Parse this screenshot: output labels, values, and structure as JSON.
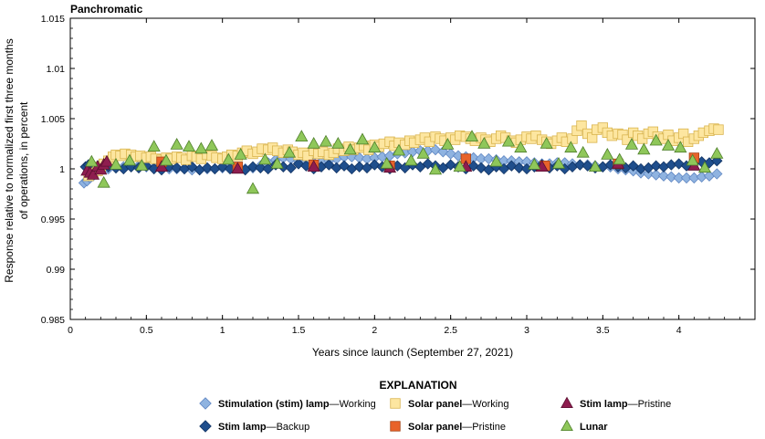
{
  "chart_data": {
    "type": "scatter",
    "title": "Panchromatic",
    "xlabel": "Years since launch (September 27, 2021)",
    "ylabel_lines": [
      "Response relative to normalized first three months",
      "of operations, in percent"
    ],
    "xlim": [
      0,
      4.5
    ],
    "ylim": [
      0.985,
      1.015
    ],
    "xticks": [
      0,
      0.5,
      1,
      1.5,
      2,
      2.5,
      3,
      3.5,
      4
    ],
    "xtick_labels": [
      "0",
      "0.5",
      "1",
      "1.5",
      "2",
      "2.5",
      "3",
      "3.5",
      "4"
    ],
    "yticks": [
      0.985,
      0.99,
      0.995,
      1,
      1.005,
      1.01,
      1.015
    ],
    "ytick_labels": [
      "0.985",
      "0.99",
      "0.995",
      "1",
      "1.005",
      "1.01",
      "1.015"
    ],
    "grid": false,
    "legend": {
      "title": "EXPLANATION",
      "placement": "bottom-center",
      "entries": [
        {
          "series": 0,
          "bold": "Stimulation (stim) lamp",
          "rest": "—Working"
        },
        {
          "series": 1,
          "bold": "Stim lamp",
          "rest": "—Backup"
        },
        {
          "series": 2,
          "bold": "Solar panel",
          "rest": "—Working"
        },
        {
          "series": 3,
          "bold": "Solar panel",
          "rest": "—Pristine"
        },
        {
          "series": 4,
          "bold": "Stim lamp",
          "rest": "—Pristine"
        },
        {
          "series": 5,
          "bold": "Lunar",
          "rest": ""
        }
      ]
    },
    "series": [
      {
        "name": "Stimulation (stim) lamp—Working",
        "marker": "diamond",
        "color": "#8fb3e0",
        "stroke": "#5f86c2",
        "x": [
          0.09,
          0.11,
          0.13,
          0.15,
          0.17,
          0.2,
          0.25,
          0.3,
          0.35,
          0.4,
          0.45,
          0.5,
          0.55,
          0.6,
          0.65,
          0.7,
          0.75,
          0.8,
          0.85,
          0.9,
          0.95,
          1.0,
          1.05,
          1.1,
          1.15,
          1.2,
          1.25,
          1.3,
          1.35,
          1.4,
          1.45,
          1.5,
          1.55,
          1.6,
          1.65,
          1.7,
          1.75,
          1.8,
          1.85,
          1.9,
          1.95,
          2.0,
          2.05,
          2.1,
          2.15,
          2.2,
          2.25,
          2.3,
          2.35,
          2.4,
          2.45,
          2.5,
          2.55,
          2.6,
          2.65,
          2.7,
          2.75,
          2.8,
          2.85,
          2.9,
          2.95,
          3.0,
          3.05,
          3.1,
          3.15,
          3.2,
          3.25,
          3.3,
          3.35,
          3.4,
          3.45,
          3.5,
          3.55,
          3.6,
          3.65,
          3.7,
          3.75,
          3.8,
          3.85,
          3.9,
          3.95,
          4.0,
          4.05,
          4.1,
          4.15,
          4.2,
          4.25
        ],
        "y": [
          0.9986,
          0.9988,
          0.9991,
          0.9993,
          0.9996,
          0.9998,
          1.0,
          1.0001,
          1.0002,
          1.0003,
          1.0003,
          1.0002,
          1.0001,
          1.0001,
          1.0,
          1.0,
          1.0,
          0.9999,
          0.9999,
          1.0,
          1.0,
          1.0001,
          1.0002,
          1.0001,
          1.0,
          1.0001,
          1.0003,
          1.0006,
          1.0009,
          1.0011,
          1.001,
          1.0008,
          1.0007,
          1.0006,
          1.0007,
          1.0008,
          1.001,
          1.0012,
          1.0012,
          1.0011,
          1.001,
          1.0011,
          1.0012,
          1.0013,
          1.0015,
          1.0016,
          1.0017,
          1.0018,
          1.0018,
          1.0019,
          1.0017,
          1.0015,
          1.0013,
          1.0012,
          1.0011,
          1.001,
          1.001,
          1.0009,
          1.0008,
          1.0008,
          1.0007,
          1.0007,
          1.0006,
          1.0005,
          1.0005,
          1.0006,
          1.0006,
          1.0005,
          1.0004,
          1.0004,
          1.0003,
          1.0002,
          1.0002,
          1.0,
          0.9999,
          0.9998,
          0.9996,
          0.9995,
          0.9994,
          0.9993,
          0.9992,
          0.9991,
          0.9991,
          0.9991,
          0.9992,
          0.9993,
          0.9995
        ]
      },
      {
        "name": "Stim lamp—Backup",
        "marker": "diamond",
        "color": "#1f4e8c",
        "stroke": "#123464",
        "x": [
          0.1,
          0.12,
          0.14,
          0.16,
          0.18,
          0.2,
          0.22,
          0.25,
          0.3,
          0.35,
          0.4,
          0.45,
          0.5,
          0.55,
          0.6,
          0.65,
          0.7,
          0.75,
          0.8,
          0.85,
          0.9,
          0.95,
          1.0,
          1.05,
          1.1,
          1.15,
          1.2,
          1.25,
          1.3,
          1.35,
          1.4,
          1.45,
          1.5,
          1.55,
          1.6,
          1.65,
          1.7,
          1.75,
          1.8,
          1.85,
          1.9,
          1.95,
          2.0,
          2.05,
          2.1,
          2.15,
          2.2,
          2.25,
          2.3,
          2.35,
          2.4,
          2.45,
          2.5,
          2.55,
          2.6,
          2.65,
          2.7,
          2.75,
          2.8,
          2.85,
          2.9,
          2.95,
          3.0,
          3.05,
          3.1,
          3.15,
          3.2,
          3.25,
          3.3,
          3.35,
          3.4,
          3.45,
          3.5,
          3.55,
          3.6,
          3.65,
          3.7,
          3.75,
          3.8,
          3.85,
          3.9,
          3.95,
          4.0,
          4.05,
          4.1,
          4.15,
          4.2,
          4.25
        ],
        "y": [
          1.0002,
          1.0004,
          1.0001,
          0.9999,
          1.0003,
          1.0,
          1.0004,
          1.0002,
          1.0001,
          1.0,
          1.0002,
          1.0001,
          1.0003,
          1.0,
          0.9999,
          1.0002,
          1.0001,
          1.0,
          1.0002,
          0.9999,
          1.0001,
          1.0,
          1.0002,
          1.0,
          1.0001,
          0.9999,
          1.0002,
          1.0001,
          1.0,
          1.0004,
          1.0002,
          1.0001,
          1.0005,
          1.0003,
          1.0,
          1.0002,
          1.0004,
          1.0001,
          1.0003,
          1.0,
          1.0002,
          1.0001,
          1.0004,
          1.0002,
          1.0,
          1.0003,
          1.0001,
          1.0004,
          1.0002,
          1.0005,
          1.0003,
          1.0001,
          1.0004,
          1.0002,
          1.0,
          1.0003,
          1.0001,
          0.9999,
          1.0002,
          1.0,
          1.0003,
          1.0001,
          1.0,
          1.0002,
          1.0004,
          1.0001,
          1.0003,
          1.0,
          1.0002,
          1.0004,
          1.0003,
          1.0001,
          1.0002,
          1.0004,
          1.0002,
          1.0001,
          1.0003,
          1.0,
          1.0001,
          1.0003,
          1.0002,
          1.0004,
          1.0005,
          1.0003,
          1.0006,
          1.0007,
          1.0006,
          1.0008
        ]
      },
      {
        "name": "Solar panel—Working",
        "marker": "square",
        "color": "#fde6a0",
        "stroke": "#d9b44e",
        "x": [
          0.12,
          0.15,
          0.18,
          0.2,
          0.22,
          0.25,
          0.28,
          0.3,
          0.33,
          0.36,
          0.4,
          0.43,
          0.46,
          0.5,
          0.53,
          0.56,
          0.6,
          0.63,
          0.66,
          0.7,
          0.73,
          0.76,
          0.8,
          0.83,
          0.86,
          0.9,
          0.93,
          0.96,
          1.0,
          1.03,
          1.06,
          1.1,
          1.13,
          1.16,
          1.2,
          1.23,
          1.26,
          1.3,
          1.33,
          1.36,
          1.4,
          1.43,
          1.46,
          1.5,
          1.53,
          1.56,
          1.6,
          1.63,
          1.66,
          1.7,
          1.73,
          1.76,
          1.8,
          1.83,
          1.86,
          1.9,
          1.93,
          1.96,
          2.0,
          2.03,
          2.06,
          2.1,
          2.13,
          2.16,
          2.2,
          2.23,
          2.26,
          2.3,
          2.33,
          2.36,
          2.4,
          2.43,
          2.46,
          2.5,
          2.53,
          2.56,
          2.6,
          2.63,
          2.66,
          2.7,
          2.73,
          2.76,
          2.8,
          2.83,
          2.86,
          2.9,
          2.93,
          2.96,
          3.0,
          3.03,
          3.06,
          3.1,
          3.13,
          3.16,
          3.2,
          3.23,
          3.26,
          3.3,
          3.33,
          3.36,
          3.4,
          3.43,
          3.46,
          3.5,
          3.53,
          3.56,
          3.6,
          3.63,
          3.66,
          3.7,
          3.73,
          3.76,
          3.8,
          3.83,
          3.86,
          3.9,
          3.93,
          3.96,
          4.0,
          4.03,
          4.06,
          4.1,
          4.13,
          4.16,
          4.2,
          4.23,
          4.26
        ],
        "y": [
          0.9993,
          0.9996,
          0.9998,
          1.0002,
          1.0005,
          1.0008,
          1.0012,
          1.0014,
          1.0013,
          1.0015,
          1.0014,
          1.0012,
          1.0013,
          1.0011,
          1.0012,
          1.001,
          1.0009,
          1.0011,
          1.001,
          1.0012,
          1.0011,
          1.0009,
          1.0013,
          1.0012,
          1.001,
          1.0014,
          1.0013,
          1.0011,
          1.001,
          1.0012,
          1.0014,
          1.0013,
          1.0016,
          1.0018,
          1.0015,
          1.0017,
          1.002,
          1.0019,
          1.0021,
          1.0018,
          1.0016,
          1.0019,
          1.0017,
          1.0014,
          1.0016,
          1.0013,
          1.0018,
          1.0015,
          1.0017,
          1.0014,
          1.0016,
          1.002,
          1.0018,
          1.0022,
          1.0019,
          1.0021,
          1.0023,
          1.0019,
          1.0024,
          1.0022,
          1.0025,
          1.0027,
          1.0023,
          1.0026,
          1.0024,
          1.0028,
          1.0026,
          1.0029,
          1.0031,
          1.0027,
          1.0032,
          1.003,
          1.0028,
          1.0031,
          1.0029,
          1.0033,
          1.0032,
          1.003,
          1.0028,
          1.0031,
          1.0029,
          1.0027,
          1.003,
          1.0033,
          1.0031,
          1.0028,
          1.0026,
          1.0029,
          1.0032,
          1.003,
          1.0033,
          1.0029,
          1.0027,
          1.0025,
          1.0028,
          1.0031,
          1.0027,
          1.003,
          1.0038,
          1.0043,
          1.0035,
          1.0031,
          1.0039,
          1.0041,
          1.0036,
          1.0033,
          1.0035,
          1.0034,
          1.0029,
          1.0036,
          1.0033,
          1.003,
          1.0035,
          1.0037,
          1.0032,
          1.003,
          1.0034,
          1.0028,
          1.0031,
          1.0035,
          1.0027,
          1.003,
          1.0033,
          1.0036,
          1.0038,
          1.004,
          1.0039
        ]
      },
      {
        "name": "Solar panel—Pristine",
        "marker": "square",
        "color": "#e8632a",
        "stroke": "#a84415",
        "x": [
          0.6,
          1.1,
          1.6,
          2.1,
          2.6,
          3.12,
          3.6,
          4.1
        ],
        "y": [
          1.0007,
          1.0002,
          1.0004,
          1.0003,
          1.001,
          1.0003,
          1.0005,
          1.0011
        ]
      },
      {
        "name": "Stim lamp—Pristine",
        "marker": "triangle",
        "color": "#8e1d4f",
        "stroke": "#5a0f30",
        "x": [
          0.11,
          0.13,
          0.15,
          0.18,
          0.2,
          0.22,
          0.24,
          0.6,
          1.1,
          1.6,
          2.1,
          2.6,
          3.1,
          3.6,
          4.1
        ],
        "y": [
          0.9998,
          0.9996,
          0.9994,
          1.0002,
          0.9999,
          1.0004,
          1.0007,
          1.0002,
          1.0,
          1.0002,
          1.0001,
          1.0002,
          1.0002,
          1.0005,
          1.0003
        ]
      },
      {
        "name": "Lunar",
        "marker": "triangle",
        "color": "#8fc75a",
        "stroke": "#4e7f2a",
        "x": [
          0.14,
          0.22,
          0.3,
          0.39,
          0.47,
          0.55,
          0.63,
          0.7,
          0.78,
          0.86,
          0.93,
          1.04,
          1.12,
          1.2,
          1.28,
          1.36,
          1.44,
          1.52,
          1.6,
          1.68,
          1.76,
          1.84,
          1.92,
          2.0,
          2.08,
          2.16,
          2.24,
          2.32,
          2.4,
          2.48,
          2.56,
          2.64,
          2.72,
          2.8,
          2.88,
          2.96,
          3.05,
          3.13,
          3.21,
          3.29,
          3.37,
          3.45,
          3.53,
          3.61,
          3.69,
          3.77,
          3.85,
          3.93,
          4.01,
          4.09,
          4.17,
          4.25
        ],
        "y": [
          1.0007,
          0.9986,
          1.0004,
          1.0008,
          1.0003,
          1.0022,
          1.0008,
          1.0024,
          1.0022,
          1.002,
          1.0023,
          1.0009,
          1.0014,
          0.998,
          1.0009,
          1.0005,
          1.0016,
          1.0032,
          1.0025,
          1.0027,
          1.0025,
          1.0019,
          1.0029,
          1.0021,
          1.0005,
          1.0018,
          1.0008,
          1.0015,
          0.9999,
          1.0024,
          1.0002,
          1.0032,
          1.0025,
          1.0007,
          1.0027,
          1.0021,
          1.0004,
          1.0025,
          1.0005,
          1.0021,
          1.0016,
          1.0002,
          1.0014,
          1.0009,
          1.0024,
          1.0019,
          1.0028,
          1.0023,
          1.0021,
          1.0008,
          1.0001,
          1.0015
        ]
      }
    ]
  }
}
